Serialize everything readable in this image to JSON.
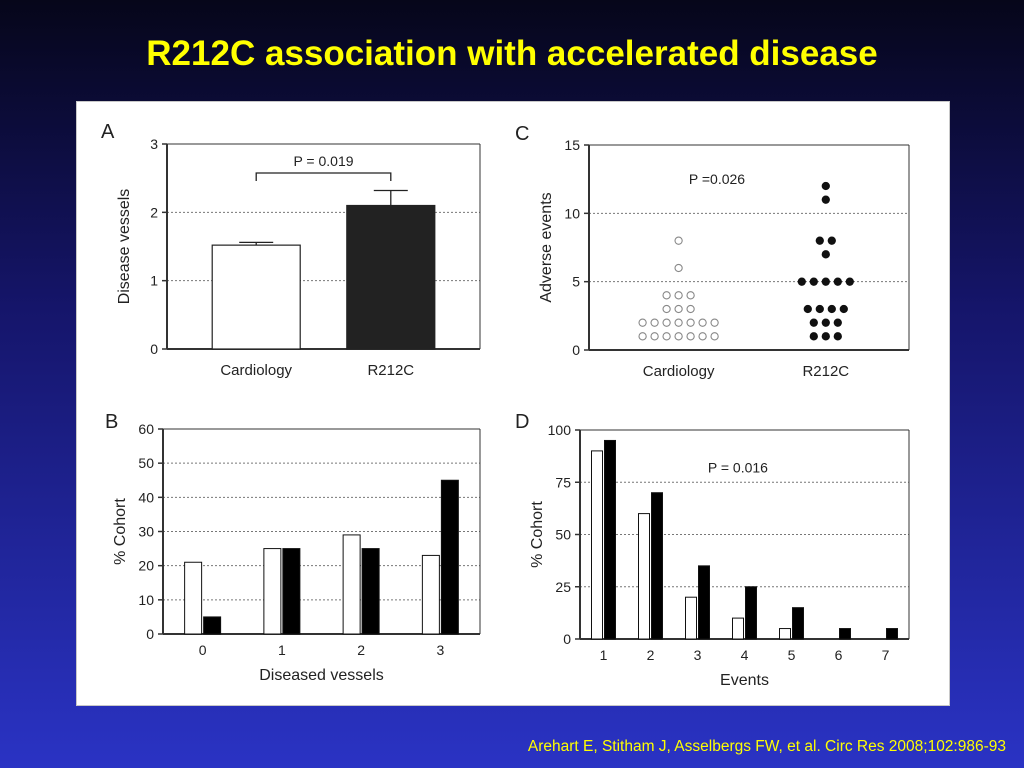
{
  "slide": {
    "title": "R212C association with accelerated disease",
    "citation": "Arehart E, Stitham J, Asselbergs FW, et al. Circ Res 2008;102:986-93",
    "colors": {
      "title": "#ffff00",
      "background_top": "#06061a",
      "background_bottom": "#2a33c4",
      "open_series": "#ffffff",
      "filled_series": "#000000"
    }
  },
  "chart_data": [
    {
      "panel": "A",
      "type": "bar",
      "ylabel": "Disease vessels",
      "xlabel": "",
      "categories": [
        "Cardiology",
        "R212C"
      ],
      "values": [
        1.52,
        2.1
      ],
      "errors": [
        0.04,
        0.22
      ],
      "fills": [
        "#ffffff",
        "#222222"
      ],
      "ylim": [
        0,
        3
      ],
      "yticks": [
        0,
        1,
        2,
        3
      ],
      "grid": true,
      "annotation": "P = 0.019"
    },
    {
      "panel": "C",
      "type": "scatter",
      "ylabel": "Adverse events",
      "xlabel": "",
      "categories": [
        "Cardiology",
        "R212C"
      ],
      "ylim": [
        0,
        15
      ],
      "yticks": [
        0,
        5,
        10,
        15
      ],
      "grid": true,
      "annotation": "P =0.026",
      "groups": [
        {
          "category": "Cardiology",
          "marker": "open",
          "counts": {
            "1": 7,
            "2": 7,
            "3": 3,
            "4": 3,
            "6": 1,
            "8": 1
          }
        },
        {
          "category": "R212C",
          "marker": "filled",
          "counts": {
            "1": 3,
            "2": 3,
            "3": 4,
            "5": 5,
            "7": 1,
            "8": 2,
            "11": 1,
            "12": 1
          }
        }
      ]
    },
    {
      "panel": "B",
      "type": "bar",
      "ylabel": "% Cohort",
      "xlabel": "Diseased vessels",
      "categories": [
        "0",
        "1",
        "2",
        "3"
      ],
      "series": [
        {
          "values": [
            21,
            25,
            29,
            23
          ],
          "fill": "#ffffff"
        },
        {
          "values": [
            5,
            25,
            25,
            45
          ],
          "fill": "#000000"
        }
      ],
      "ylim": [
        0,
        60
      ],
      "yticks": [
        0,
        10,
        20,
        30,
        40,
        50,
        60
      ],
      "grid": true
    },
    {
      "panel": "D",
      "type": "bar",
      "ylabel": "% Cohort",
      "xlabel": "Events",
      "categories": [
        "1",
        "2",
        "3",
        "4",
        "5",
        "6",
        "7"
      ],
      "series": [
        {
          "values": [
            90,
            60,
            20,
            10,
            5,
            0,
            0
          ],
          "fill": "#ffffff"
        },
        {
          "values": [
            95,
            70,
            35,
            25,
            15,
            5,
            5
          ],
          "fill": "#000000"
        }
      ],
      "ylim": [
        0,
        100
      ],
      "yticks": [
        0,
        25,
        50,
        75,
        100
      ],
      "grid": true,
      "annotation": "P = 0.016"
    }
  ]
}
